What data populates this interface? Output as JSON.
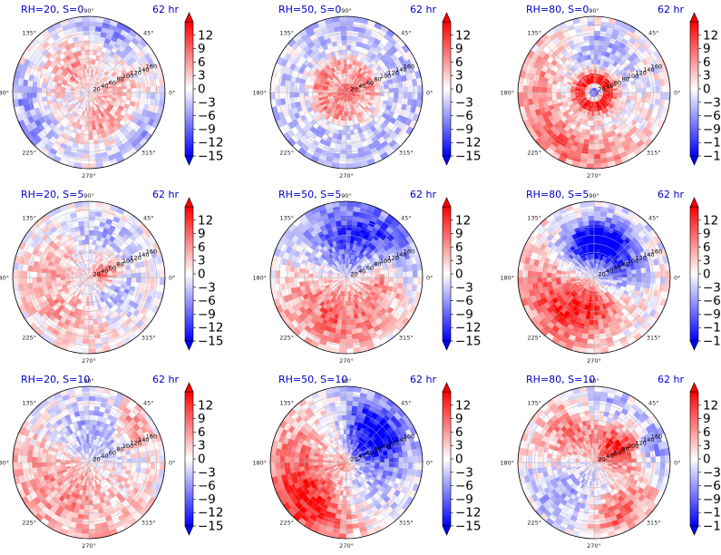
{
  "figure": {
    "colormap": "bwr",
    "colors": {
      "negative": "#0000ff",
      "zero": "#ffffff",
      "positive": "#ff0000",
      "title": "#0000cc"
    },
    "angle_ticks": [
      "0°",
      "45°",
      "90°",
      "135°",
      "180°",
      "225°",
      "270°",
      "315°"
    ],
    "radial_ticks": [
      "20",
      "40",
      "60",
      "80",
      "100",
      "120",
      "140",
      "160"
    ],
    "r_max": 180,
    "colorbar_ticks": [
      "12",
      "9",
      "6",
      "3",
      "0",
      "−3",
      "−6",
      "−9",
      "−12",
      "−15"
    ],
    "colorbar_range": [
      -15,
      15
    ],
    "colorbar_extend": "both"
  },
  "chart_data": [
    {
      "type": "heatmap",
      "projection": "polar",
      "title": "RH=20, S=0",
      "time_label": "62 hr",
      "pattern": "noisy mixed anomalies; red ring band around radius 30-60, blue patches on outer ring"
    },
    {
      "type": "heatmap",
      "projection": "polar",
      "title": "RH=50, S=0",
      "time_label": "62 hr",
      "pattern": "blue background with red spiral band near radius 20-60, strong red core"
    },
    {
      "type": "heatmap",
      "projection": "polar",
      "title": "RH=80, S=0",
      "time_label": "62 hr",
      "pattern": "strong red ring around radius 10-30 with blue eye; red spiral band in outer southern region"
    },
    {
      "type": "heatmap",
      "projection": "polar",
      "title": "RH=20, S=5",
      "time_label": "62 hr",
      "pattern": "mixed red and blue patches; red near center-east"
    },
    {
      "type": "heatmap",
      "projection": "polar",
      "title": "RH=50, S=5",
      "time_label": "62 hr",
      "pattern": "blue in north, red in south and east"
    },
    {
      "type": "heatmap",
      "projection": "polar",
      "title": "RH=80, S=5",
      "time_label": "62 hr",
      "pattern": "deep blue band in north-west, red in south-west and south"
    },
    {
      "type": "heatmap",
      "projection": "polar",
      "title": "RH=20, S=10",
      "time_label": "62 hr",
      "pattern": "blue in north, light red in south, red streak in north-east"
    },
    {
      "type": "heatmap",
      "projection": "polar",
      "title": "RH=50, S=10",
      "time_label": "62 hr",
      "pattern": "strong blue in north-east, red in west and south-west"
    },
    {
      "type": "heatmap",
      "projection": "polar",
      "title": "RH=80, S=10",
      "time_label": "62 hr",
      "pattern": "strong red in north-east, mixed elsewhere, red in south-east"
    }
  ]
}
